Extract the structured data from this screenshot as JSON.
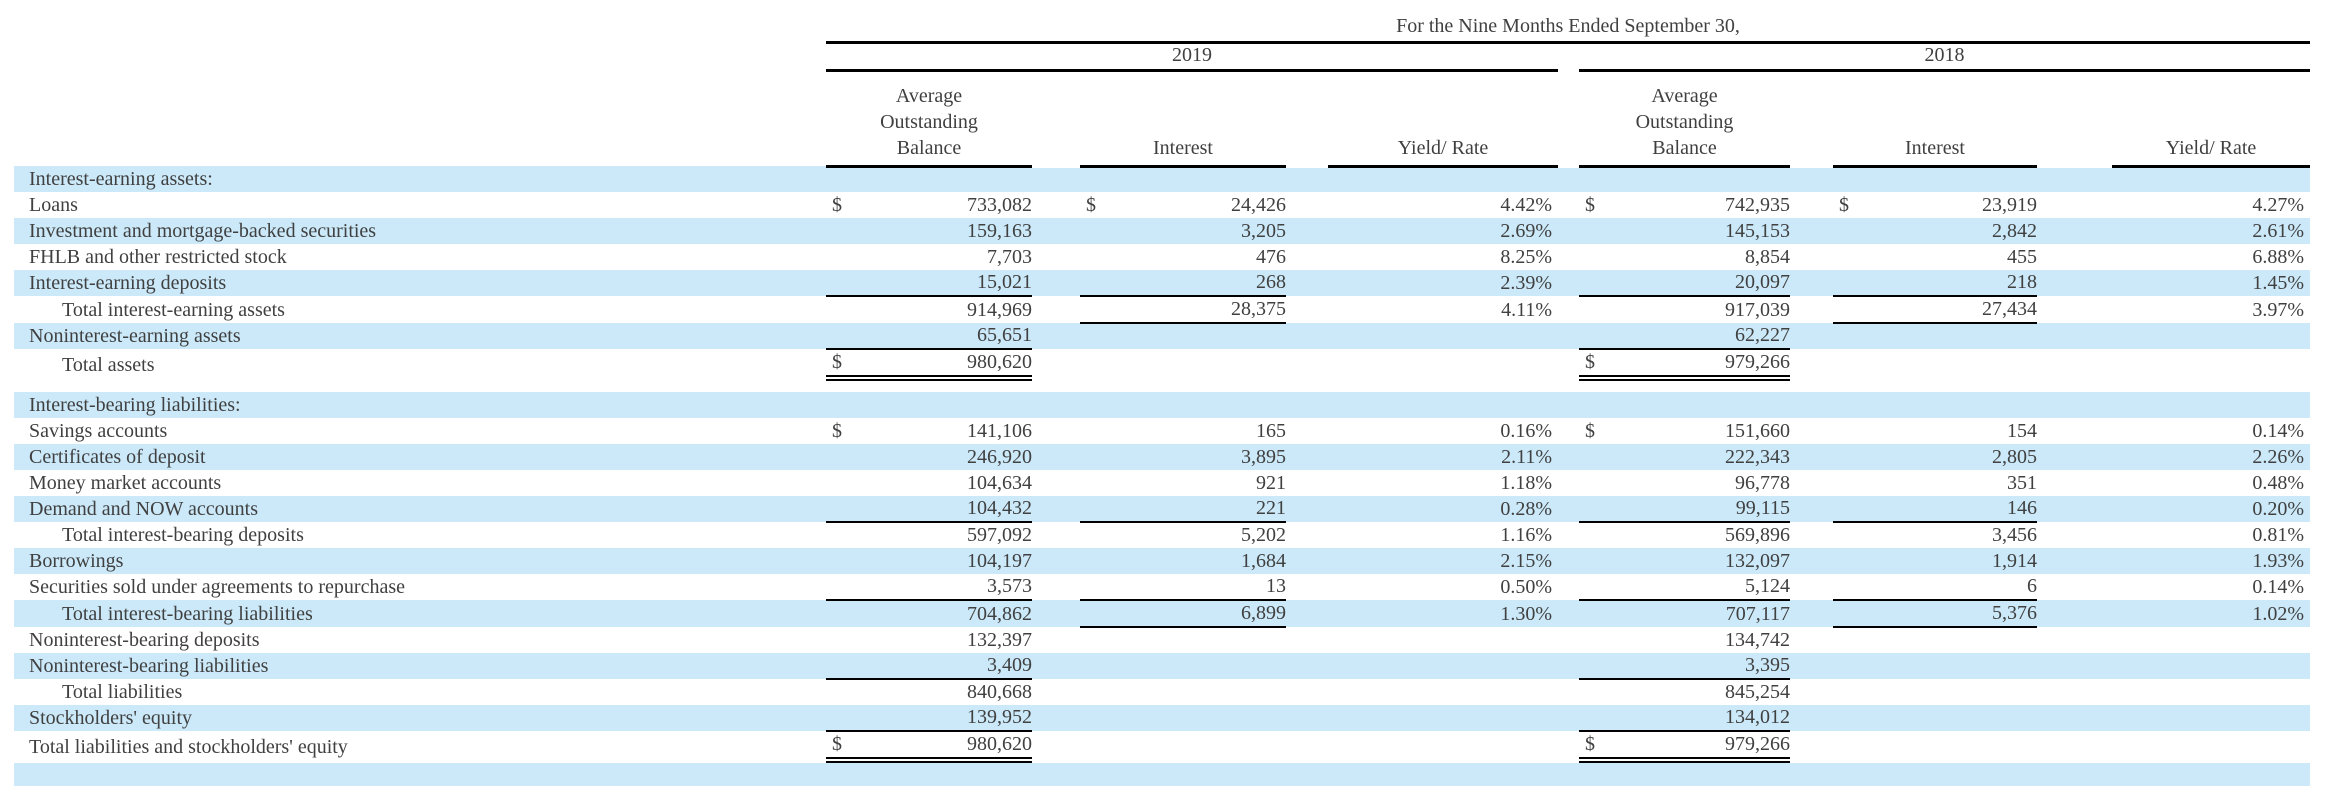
{
  "header": {
    "title": "For the Nine Months Ended September 30,",
    "years": [
      "2019",
      "2018"
    ],
    "columns": {
      "balance": "Average\nOutstanding\nBalance",
      "interest": "Interest",
      "yield": "Yield/ Rate"
    }
  },
  "style": {
    "stripe_color": "#cbe9f9",
    "text_color": "#404040",
    "rule_color": "#000000"
  },
  "table": {
    "rows": [
      {
        "label": "Interest-earning assets:",
        "section": true,
        "shaded": true
      },
      {
        "label": "Loans",
        "shaded": false,
        "v": [
          "$",
          "733,082",
          "$",
          "24,426",
          "4.42%",
          "$",
          "742,935",
          "$",
          "23,919",
          "4.27%"
        ]
      },
      {
        "label": "Investment and mortgage-backed securities",
        "shaded": true,
        "v": [
          "",
          "159,163",
          "",
          "3,205",
          "2.69%",
          "",
          "145,153",
          "",
          "2,842",
          "2.61%"
        ]
      },
      {
        "label": "FHLB and other restricted stock",
        "shaded": false,
        "v": [
          "",
          "7,703",
          "",
          "476",
          "8.25%",
          "",
          "8,854",
          "",
          "455",
          "6.88%"
        ]
      },
      {
        "label": "Interest-earning deposits",
        "shaded": true,
        "ul_bal": true,
        "ul_int": true,
        "v": [
          "",
          "15,021",
          "",
          "268",
          "2.39%",
          "",
          "20,097",
          "",
          "218",
          "1.45%"
        ]
      },
      {
        "label": "Total interest-earning assets",
        "indent": true,
        "shaded": false,
        "ul_int": true,
        "v": [
          "",
          "914,969",
          "",
          "28,375",
          "4.11%",
          "",
          "917,039",
          "",
          "27,434",
          "3.97%"
        ]
      },
      {
        "label": "Noninterest-earning assets",
        "shaded": true,
        "ul_bal": true,
        "v": [
          "",
          "65,651",
          "",
          "",
          "",
          "",
          "62,227",
          "",
          "",
          ""
        ]
      },
      {
        "label": "Total assets",
        "indent": true,
        "shaded": false,
        "dbl_bal": true,
        "spacer_after": true,
        "v": [
          "$",
          "980,620",
          "",
          "",
          "",
          "$",
          "979,266",
          "",
          "",
          ""
        ]
      },
      {
        "label": "Interest-bearing liabilities:",
        "section": true,
        "shaded": true
      },
      {
        "label": "Savings accounts",
        "shaded": false,
        "v": [
          "$",
          "141,106",
          "",
          "165",
          "0.16%",
          "$",
          "151,660",
          "",
          "154",
          "0.14%"
        ]
      },
      {
        "label": "Certificates of deposit",
        "shaded": true,
        "v": [
          "",
          "246,920",
          "",
          "3,895",
          "2.11%",
          "",
          "222,343",
          "",
          "2,805",
          "2.26%"
        ]
      },
      {
        "label": "Money market accounts",
        "shaded": false,
        "v": [
          "",
          "104,634",
          "",
          "921",
          "1.18%",
          "",
          "96,778",
          "",
          "351",
          "0.48%"
        ]
      },
      {
        "label": "Demand and NOW accounts",
        "shaded": true,
        "ul_bal": true,
        "ul_int": true,
        "v": [
          "",
          "104,432",
          "",
          "221",
          "0.28%",
          "",
          "99,115",
          "",
          "146",
          "0.20%"
        ]
      },
      {
        "label": "Total interest-bearing deposits",
        "indent": true,
        "shaded": false,
        "v": [
          "",
          "597,092",
          "",
          "5,202",
          "1.16%",
          "",
          "569,896",
          "",
          "3,456",
          "0.81%"
        ]
      },
      {
        "label": "Borrowings",
        "shaded": true,
        "v": [
          "",
          "104,197",
          "",
          "1,684",
          "2.15%",
          "",
          "132,097",
          "",
          "1,914",
          "1.93%"
        ]
      },
      {
        "label": "Securities sold under agreements to repurchase",
        "shaded": false,
        "ul_bal": true,
        "ul_int": true,
        "v": [
          "",
          "3,573",
          "",
          "13",
          "0.50%",
          "",
          "5,124",
          "",
          "6",
          "0.14%"
        ]
      },
      {
        "label": "Total interest-bearing liabilities",
        "indent": true,
        "shaded": true,
        "ul_int": true,
        "v": [
          "",
          "704,862",
          "",
          "6,899",
          "1.30%",
          "",
          "707,117",
          "",
          "5,376",
          "1.02%"
        ]
      },
      {
        "label": "Noninterest-bearing deposits",
        "shaded": false,
        "v": [
          "",
          "132,397",
          "",
          "",
          "",
          "",
          "134,742",
          "",
          "",
          ""
        ]
      },
      {
        "label": "Noninterest-bearing liabilities",
        "shaded": true,
        "ul_bal": true,
        "v": [
          "",
          "3,409",
          "",
          "",
          "",
          "",
          "3,395",
          "",
          "",
          ""
        ]
      },
      {
        "label": "Total liabilities",
        "indent": true,
        "shaded": false,
        "v": [
          "",
          "840,668",
          "",
          "",
          "",
          "",
          "845,254",
          "",
          "",
          ""
        ]
      },
      {
        "label": "Stockholders' equity",
        "shaded": true,
        "ul_bal": true,
        "v": [
          "",
          "139,952",
          "",
          "",
          "",
          "",
          "134,012",
          "",
          "",
          ""
        ]
      },
      {
        "label": "Total liabilities and stockholders' equity",
        "shaded": false,
        "dbl_bal": true,
        "v": [
          "$",
          "980,620",
          "",
          "",
          "",
          "$",
          "979,266",
          "",
          "",
          ""
        ]
      },
      {
        "label": "",
        "empty": true,
        "shaded": true
      }
    ]
  }
}
